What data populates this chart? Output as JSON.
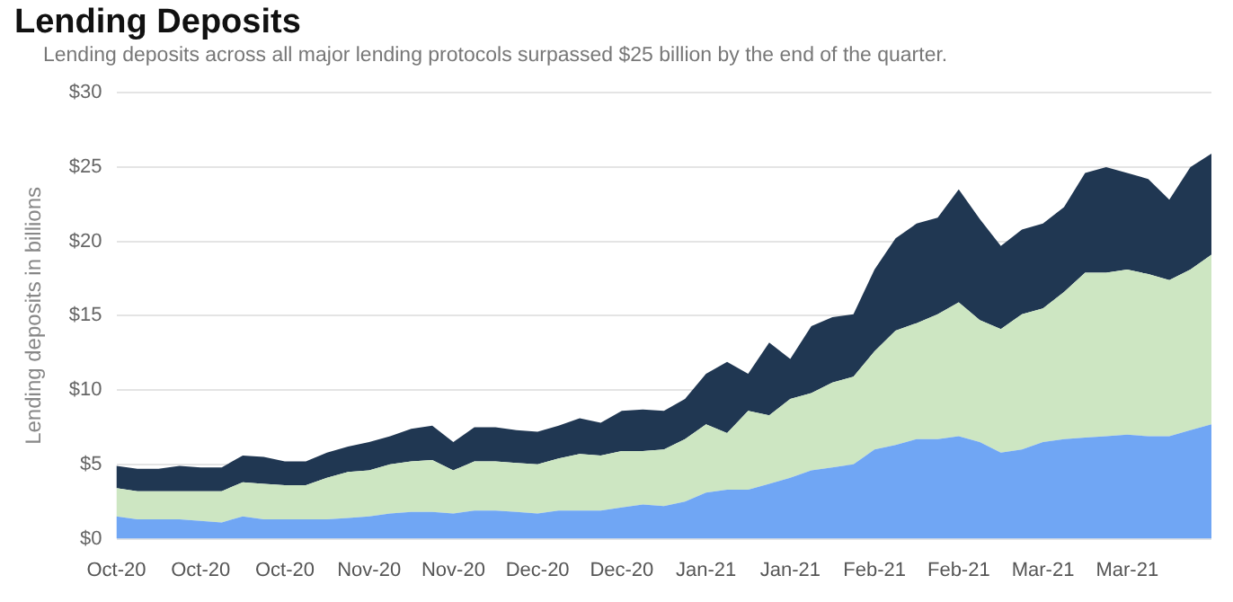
{
  "chart_data": {
    "type": "area",
    "title": "Lending Deposits",
    "subtitle": "Lending deposits across all major lending protocols surpassed $25 billion by the end of the quarter.",
    "ylabel": "Lending deposits in billions",
    "categories": [
      "Oct-20",
      null,
      null,
      null,
      "Oct-20",
      null,
      null,
      null,
      "Oct-20",
      null,
      null,
      null,
      "Nov-20",
      null,
      null,
      null,
      "Nov-20",
      null,
      null,
      null,
      "Dec-20",
      null,
      null,
      null,
      "Dec-20",
      null,
      null,
      null,
      "Jan-21",
      null,
      null,
      null,
      "Jan-21",
      null,
      null,
      null,
      "Feb-21",
      null,
      null,
      null,
      "Feb-21",
      null,
      null,
      null,
      "Mar-21",
      null,
      null,
      null,
      "Mar-21",
      null,
      null,
      null,
      null
    ],
    "stacked": true,
    "series": [
      {
        "color": "#70a6f4",
        "values": [
          1.5,
          1.3,
          1.3,
          1.3,
          1.2,
          1.1,
          1.5,
          1.3,
          1.3,
          1.3,
          1.3,
          1.4,
          1.5,
          1.7,
          1.8,
          1.8,
          1.7,
          1.9,
          1.9,
          1.8,
          1.7,
          1.9,
          1.9,
          1.9,
          2.1,
          2.3,
          2.2,
          2.5,
          3.1,
          3.3,
          3.3,
          3.7,
          4.1,
          4.6,
          4.8,
          5.0,
          6.0,
          6.3,
          6.7,
          6.7,
          6.9,
          6.5,
          5.8,
          6.0,
          6.5,
          6.7,
          6.8,
          6.9,
          7.0,
          6.9,
          6.9,
          7.3,
          7.7
        ]
      },
      {
        "color": "#cde6c2",
        "values": [
          1.9,
          1.9,
          1.9,
          1.9,
          2.0,
          2.1,
          2.3,
          2.4,
          2.3,
          2.3,
          2.8,
          3.1,
          3.1,
          3.3,
          3.4,
          3.5,
          2.9,
          3.3,
          3.3,
          3.3,
          3.3,
          3.5,
          3.8,
          3.7,
          3.8,
          3.6,
          3.8,
          4.2,
          4.6,
          3.8,
          5.3,
          4.6,
          5.3,
          5.2,
          5.7,
          5.9,
          6.6,
          7.7,
          7.8,
          8.4,
          9.0,
          8.2,
          8.3,
          9.1,
          9.0,
          9.9,
          11.1,
          11.0,
          11.1,
          10.9,
          10.5,
          10.8,
          11.4
        ]
      },
      {
        "color": "#203752",
        "values": [
          1.5,
          1.5,
          1.5,
          1.7,
          1.6,
          1.6,
          1.8,
          1.8,
          1.6,
          1.6,
          1.7,
          1.7,
          1.9,
          1.9,
          2.2,
          2.3,
          1.9,
          2.3,
          2.3,
          2.2,
          2.2,
          2.2,
          2.4,
          2.2,
          2.7,
          2.8,
          2.6,
          2.7,
          3.4,
          4.8,
          2.5,
          4.9,
          2.7,
          4.5,
          4.4,
          4.2,
          5.5,
          6.2,
          6.7,
          6.5,
          7.6,
          6.8,
          5.6,
          5.7,
          5.7,
          5.7,
          6.7,
          7.1,
          6.5,
          6.4,
          5.4,
          6.9,
          6.8
        ]
      }
    ],
    "ylim": [
      0,
      30
    ],
    "yticks": [
      {
        "value": 0,
        "label": "$0"
      },
      {
        "value": 5,
        "label": "$5"
      },
      {
        "value": 10,
        "label": "$10"
      },
      {
        "value": 15,
        "label": "$15"
      },
      {
        "value": 20,
        "label": "$20"
      },
      {
        "value": 25,
        "label": "$25"
      },
      {
        "value": 30,
        "label": "$30"
      }
    ],
    "grid": "y",
    "legend": false
  }
}
